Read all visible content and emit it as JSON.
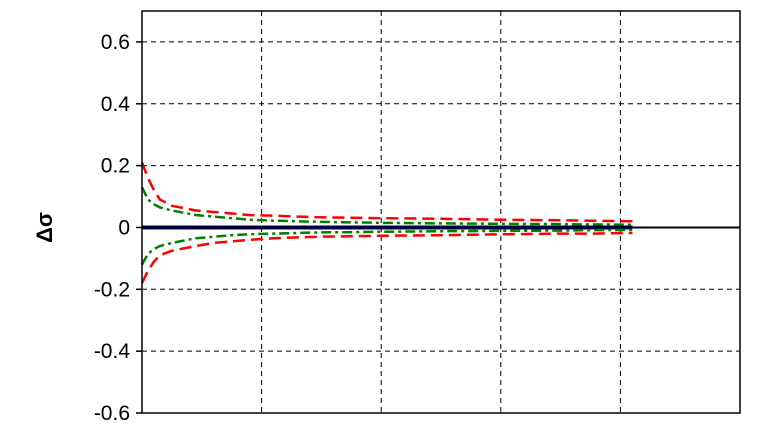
{
  "chart_data": {
    "type": "line",
    "title": "",
    "xlabel": "",
    "ylabel": "Δσ",
    "ylim": [
      -0.6,
      0.7
    ],
    "yticks": [
      0.6,
      0.4,
      0.2,
      0,
      -0.2,
      -0.4,
      -0.6
    ],
    "ytick_labels": [
      "0.6",
      "0.4",
      "0.2",
      "0",
      "-0.2",
      "-0.4",
      "-0.6"
    ],
    "xlim": [
      0,
      100
    ],
    "xgrid": [
      0,
      20,
      40,
      60,
      80
    ],
    "grid": true,
    "legend": "none",
    "series": [
      {
        "color": "#ff0000",
        "style": "dashed",
        "x": [
          0,
          1,
          2,
          3,
          5,
          9,
          12,
          15,
          18,
          22,
          26,
          30,
          40,
          50,
          60,
          70,
          75,
          82
        ],
        "y": [
          0.21,
          0.16,
          0.12,
          0.09,
          0.07,
          0.055,
          0.05,
          0.045,
          0.04,
          0.038,
          0.035,
          0.033,
          0.03,
          0.028,
          0.025,
          0.023,
          0.022,
          0.02
        ]
      },
      {
        "color": "#008000",
        "style": "dashdot",
        "x": [
          0,
          1,
          2,
          3,
          5,
          9,
          12,
          15,
          18,
          22,
          26,
          30,
          40,
          50,
          60,
          70,
          75,
          82
        ],
        "y": [
          0.13,
          0.09,
          0.075,
          0.065,
          0.055,
          0.04,
          0.035,
          0.03,
          0.025,
          0.022,
          0.02,
          0.018,
          0.015,
          0.013,
          0.012,
          0.011,
          0.01,
          0.009
        ]
      },
      {
        "color": "#000080",
        "style": "solid",
        "x": [
          0,
          82
        ],
        "y": [
          0,
          0
        ]
      },
      {
        "color": "#008000",
        "style": "dashdot",
        "x": [
          0,
          1,
          2,
          3,
          5,
          9,
          12,
          15,
          18,
          22,
          26,
          30,
          40,
          50,
          60,
          70,
          75,
          82
        ],
        "y": [
          -0.12,
          -0.085,
          -0.07,
          -0.06,
          -0.05,
          -0.035,
          -0.03,
          -0.025,
          -0.022,
          -0.02,
          -0.018,
          -0.016,
          -0.014,
          -0.012,
          -0.011,
          -0.01,
          -0.009,
          -0.008
        ]
      },
      {
        "color": "#ff0000",
        "style": "dashed",
        "x": [
          0,
          1,
          2,
          3,
          5,
          9,
          12,
          15,
          18,
          22,
          26,
          30,
          40,
          50,
          60,
          70,
          75,
          82
        ],
        "y": [
          -0.18,
          -0.14,
          -0.11,
          -0.09,
          -0.075,
          -0.06,
          -0.05,
          -0.045,
          -0.04,
          -0.035,
          -0.032,
          -0.03,
          -0.027,
          -0.025,
          -0.022,
          -0.02,
          -0.02,
          -0.018
        ]
      }
    ]
  }
}
